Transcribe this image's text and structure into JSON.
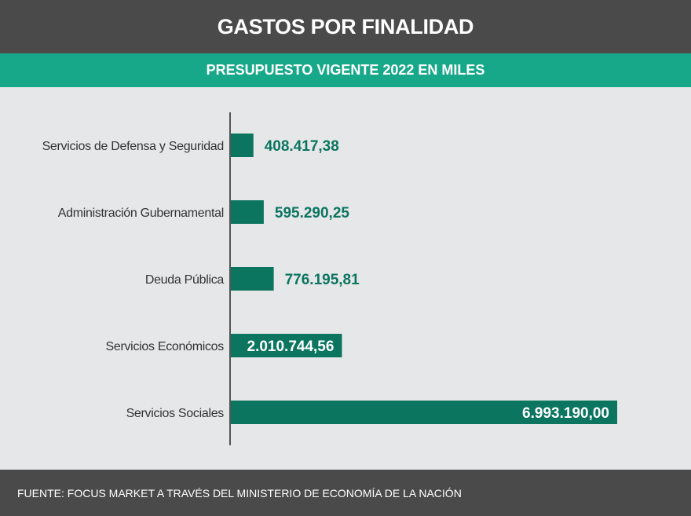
{
  "chart_data": {
    "type": "bar",
    "orientation": "horizontal",
    "title": "GASTOS POR FINALIDAD",
    "subtitle": "PRESUPUESTO VIGENTE 2022 EN MILES",
    "categories": [
      "Servicios de Defensa y Seguridad",
      "Administración Gubernamental",
      "Deuda Pública",
      "Servicios Económicos",
      "Servicios Sociales"
    ],
    "values": [
      408417.38,
      595290.25,
      776195.81,
      2010744.56,
      6993190.0
    ],
    "value_labels": [
      "408.417,38",
      "595.290,25",
      "776.195,81",
      "2.010.744,56",
      "6.993.190,00"
    ],
    "xlim": [
      0,
      6993190
    ],
    "grid": false,
    "legend": "none"
  },
  "colors": {
    "header_bg": "#4a4a4a",
    "subheader_bg": "#17a88a",
    "bar": "#0b7560",
    "value_text": "#0b7560",
    "plot_bg": "#e6e7e8"
  },
  "footer": {
    "source": "FUENTE: FOCUS MARKET  A TRAVÉS DEL MINISTERIO DE ECONOMÍA DE LA NACIÓN"
  }
}
